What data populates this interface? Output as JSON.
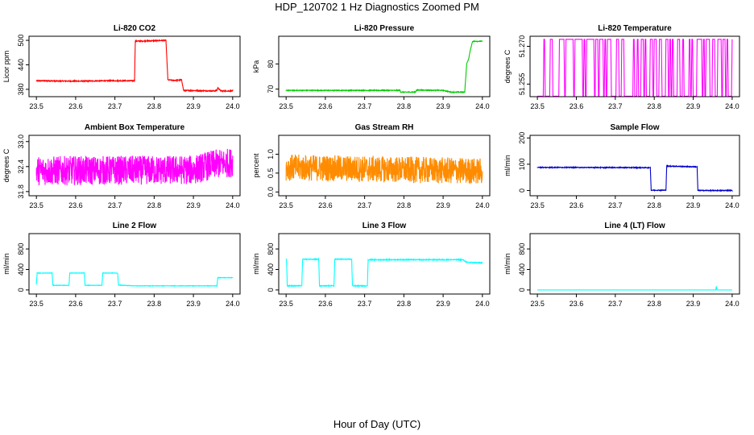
{
  "figure": {
    "title": "HDP_120702  1 Hz Diagnostics Zoomed PM",
    "xlabel": "Hour of Day (UTC)"
  },
  "chart_data": [
    {
      "type": "line",
      "title": "Li-820 CO2",
      "xlabel": "",
      "ylabel": "Licor ppm",
      "color": "#ff0000",
      "xlim": [
        23.5,
        24.0
      ],
      "ylim": [
        362,
        510
      ],
      "xticks": [
        "23.5",
        "23.6",
        "23.7",
        "23.8",
        "23.9",
        "24.0"
      ],
      "yticks": [
        {
          "v": 380,
          "label": "380"
        },
        {
          "v": 440,
          "label": "440"
        },
        {
          "v": 500,
          "label": "500"
        }
      ],
      "x": [
        23.5,
        23.6,
        23.7,
        23.75,
        23.752,
        23.8,
        23.83,
        23.835,
        23.85,
        23.87,
        23.875,
        23.9,
        23.95,
        23.96,
        23.962,
        23.97,
        24.0
      ],
      "y": [
        401,
        400,
        401,
        401,
        498,
        499,
        500,
        403,
        402,
        403,
        377,
        377,
        376,
        377,
        384,
        376,
        376
      ],
      "noise": 1.2
    },
    {
      "type": "line",
      "title": "Li-820 Pressure",
      "xlabel": "",
      "ylabel": "kPa",
      "color": "#00cc00",
      "xlim": [
        23.5,
        24.0
      ],
      "ylim": [
        67,
        91
      ],
      "xticks": [
        "23.5",
        "23.6",
        "23.7",
        "23.8",
        "23.9",
        "24.0"
      ],
      "yticks": [
        {
          "v": 70,
          "label": "70"
        },
        {
          "v": 80,
          "label": "80"
        }
      ],
      "x": [
        23.5,
        23.79,
        23.792,
        23.83,
        23.832,
        23.85,
        23.9,
        23.92,
        23.955,
        23.96,
        23.965,
        23.97,
        23.975,
        24.0
      ],
      "y": [
        69.5,
        69.5,
        68.8,
        68.8,
        69.6,
        69.6,
        69.5,
        68.8,
        68.8,
        80,
        82,
        86,
        89,
        89
      ],
      "noise": 0.15
    },
    {
      "type": "line",
      "title": "Li-820 Temperature",
      "xlabel": "",
      "ylabel": "degrees C",
      "color": "#ff00ff",
      "xlim": [
        23.5,
        24.0
      ],
      "ylim": [
        51.25,
        51.274
      ],
      "xticks": [
        "23.5",
        "23.6",
        "23.7",
        "23.8",
        "23.9",
        "24.0"
      ],
      "yticks": [
        {
          "v": 51.255,
          "label": "51.255"
        },
        {
          "v": 51.27,
          "label": "51.270"
        }
      ],
      "binary_levels": [
        51.2502,
        51.2728
      ],
      "pattern": "switching",
      "x": [
        23.5,
        24.0
      ],
      "y": [
        51.2502,
        51.2502
      ]
    },
    {
      "type": "line",
      "title": "Ambient Box Temperature",
      "xlabel": "",
      "ylabel": "degrees C",
      "color": "#ff00ff",
      "xlim": [
        23.5,
        24.0
      ],
      "ylim": [
        31.7,
        33.15
      ],
      "xticks": [
        "23.5",
        "23.6",
        "23.7",
        "23.8",
        "23.9",
        "24.0"
      ],
      "yticks": [
        {
          "v": 31.8,
          "label": "31.8"
        },
        {
          "v": 32.4,
          "label": "32.4"
        },
        {
          "v": 33.0,
          "label": "33.0"
        }
      ],
      "x": [
        23.5,
        23.9,
        23.95,
        24.0
      ],
      "y": [
        32.3,
        32.32,
        32.45,
        32.5
      ],
      "noise": 0.35
    },
    {
      "type": "line",
      "title": "Gas Stream RH",
      "xlabel": "",
      "ylabel": "percent",
      "color": "#ff8c00",
      "xlim": [
        23.5,
        24.0
      ],
      "ylim": [
        -0.1,
        1.5
      ],
      "xticks": [
        "23.5",
        "23.6",
        "23.7",
        "23.8",
        "23.9",
        "24.0"
      ],
      "yticks": [
        {
          "v": 0,
          "label": "0.0"
        },
        {
          "v": 0.5,
          "label": "0.5"
        },
        {
          "v": 1.0,
          "label": "1.0"
        }
      ],
      "x": [
        23.5,
        23.75,
        24.0
      ],
      "y": [
        0.65,
        0.6,
        0.55
      ],
      "noise": 0.35
    },
    {
      "type": "line",
      "title": "Sample Flow",
      "xlabel": "",
      "ylabel": "ml/min",
      "color": "#0000cc",
      "xlim": [
        23.5,
        24.0
      ],
      "ylim": [
        -20,
        210
      ],
      "xticks": [
        "23.5",
        "23.6",
        "23.7",
        "23.8",
        "23.9",
        "24.0"
      ],
      "yticks": [
        {
          "v": 0,
          "label": "0"
        },
        {
          "v": 100,
          "label": "100"
        },
        {
          "v": 200,
          "label": "200"
        }
      ],
      "x": [
        23.5,
        23.79,
        23.792,
        23.83,
        23.832,
        23.91,
        23.912,
        24.0
      ],
      "y": [
        88,
        87,
        1,
        1,
        93,
        90,
        0,
        0
      ],
      "noise": 1.5
    },
    {
      "type": "line",
      "title": "Line 2 Flow",
      "xlabel": "",
      "ylabel": "ml/min",
      "color": "#00ffff",
      "xlim": [
        23.5,
        24.0
      ],
      "ylim": [
        -80,
        1100
      ],
      "xticks": [
        "23.5",
        "23.6",
        "23.7",
        "23.8",
        "23.9",
        "24.0"
      ],
      "yticks": [
        {
          "v": 0,
          "label": "0"
        },
        {
          "v": 400,
          "label": "400"
        },
        {
          "v": 800,
          "label": "800"
        }
      ],
      "x": [
        23.5,
        23.502,
        23.54,
        23.542,
        23.583,
        23.585,
        23.622,
        23.624,
        23.667,
        23.669,
        23.707,
        23.709,
        23.75,
        23.955,
        23.96,
        23.962,
        24.0
      ],
      "y": [
        110,
        330,
        330,
        90,
        90,
        330,
        330,
        90,
        90,
        330,
        330,
        95,
        80,
        80,
        80,
        240,
        240
      ],
      "noise": 4
    },
    {
      "type": "line",
      "title": "Line 3 Flow",
      "xlabel": "",
      "ylabel": "ml/min",
      "color": "#00ffff",
      "xlim": [
        23.5,
        24.0
      ],
      "ylim": [
        -80,
        1100
      ],
      "xticks": [
        "23.5",
        "23.6",
        "23.7",
        "23.8",
        "23.9",
        "24.0"
      ],
      "yticks": [
        {
          "v": 0,
          "label": "0"
        },
        {
          "v": 400,
          "label": "400"
        },
        {
          "v": 800,
          "label": "800"
        }
      ],
      "x": [
        23.5,
        23.501,
        23.503,
        23.54,
        23.542,
        23.583,
        23.585,
        23.622,
        23.624,
        23.667,
        23.669,
        23.707,
        23.709,
        23.95,
        23.96,
        24.0
      ],
      "y": [
        600,
        600,
        80,
        80,
        600,
        600,
        80,
        80,
        600,
        600,
        80,
        80,
        590,
        590,
        540,
        530
      ],
      "noise": 8
    },
    {
      "type": "line",
      "title": "Line 4 (LT) Flow",
      "xlabel": "",
      "ylabel": "ml/min",
      "color": "#00ffff",
      "xlim": [
        23.5,
        24.0
      ],
      "ylim": [
        -80,
        1100
      ],
      "xticks": [
        "23.5",
        "23.6",
        "23.7",
        "23.8",
        "23.9",
        "24.0"
      ],
      "yticks": [
        {
          "v": 0,
          "label": "0"
        },
        {
          "v": 400,
          "label": "400"
        },
        {
          "v": 800,
          "label": "800"
        }
      ],
      "x": [
        23.5,
        23.958,
        23.959,
        23.96,
        23.961,
        24.0
      ],
      "y": [
        0,
        0,
        60,
        60,
        0,
        0
      ],
      "noise": 0
    }
  ]
}
